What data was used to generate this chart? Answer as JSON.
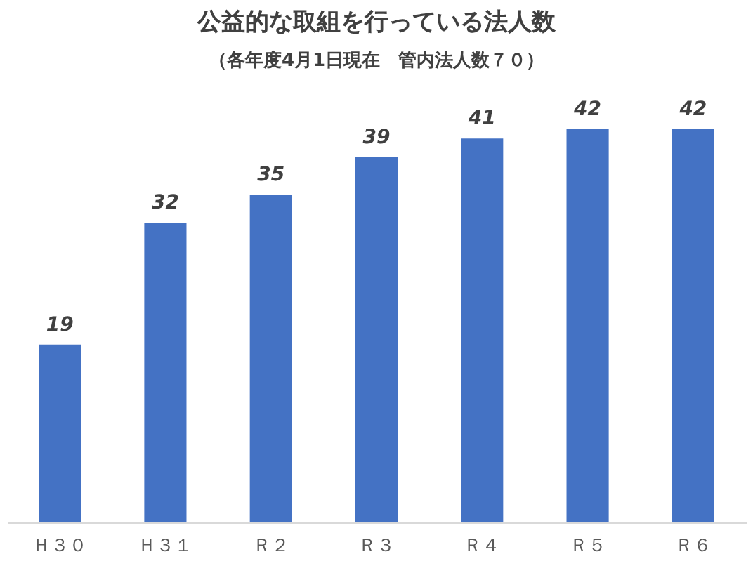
{
  "chart_data": {
    "type": "bar",
    "title": "公益的な取組を行っている法人数",
    "subtitle": "（各年度4月1日現在　管内法人数７０）",
    "categories": [
      "Ｈ３０",
      "Ｈ３１",
      "Ｒ２",
      "Ｒ３",
      "Ｒ４",
      "Ｒ５",
      "Ｒ６"
    ],
    "values": [
      19,
      32,
      35,
      39,
      41,
      42,
      42
    ],
    "color": "#4472c4",
    "data_labels": true,
    "tick_labels": "x"
  }
}
